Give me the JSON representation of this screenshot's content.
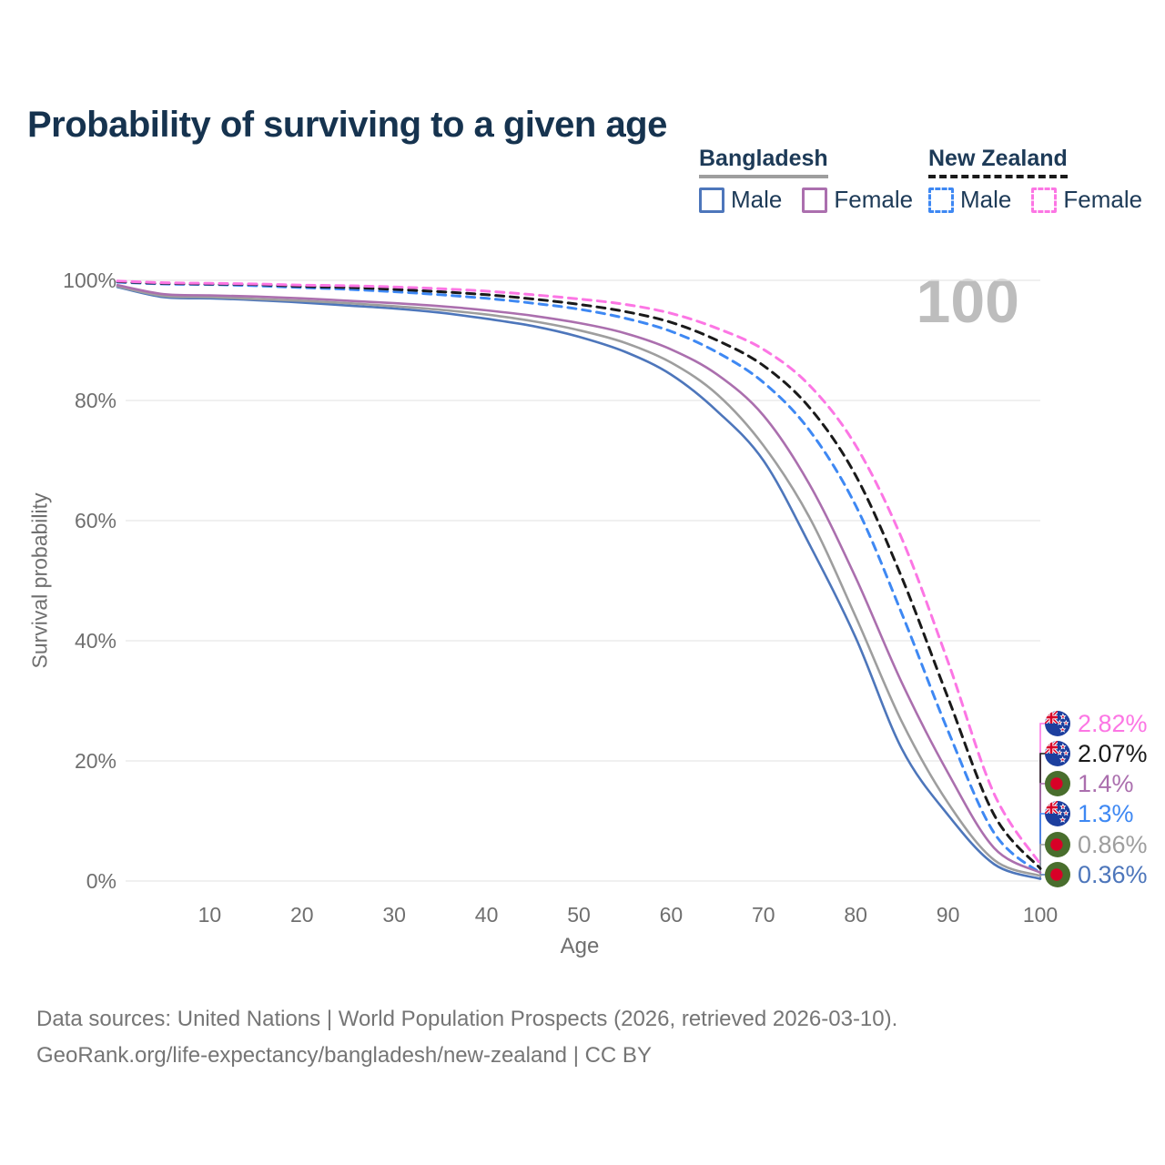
{
  "title": "Probability of surviving to a given age",
  "watermark": "100",
  "legend": {
    "groups": [
      {
        "name": "Bangladesh",
        "line_style": "solid",
        "line_color": "#9e9e9e",
        "items": [
          {
            "label": "Male",
            "color": "#4d76bb"
          },
          {
            "label": "Female",
            "color": "#ab6fae"
          }
        ]
      },
      {
        "name": "New Zealand",
        "line_style": "dashed",
        "line_color": "#1a1a1a",
        "items": [
          {
            "label": "Male",
            "color": "#3e88f3"
          },
          {
            "label": "Female",
            "color": "#fc76e4"
          }
        ]
      }
    ]
  },
  "chart_data": {
    "type": "line",
    "title": "Probability of surviving to a given age",
    "xlabel": "Age",
    "ylabel": "Survival probability",
    "xlim": [
      0,
      100
    ],
    "ylim": [
      0,
      100
    ],
    "grid": "horizontal",
    "x_ticks": [
      10,
      20,
      30,
      40,
      50,
      60,
      70,
      80,
      90,
      100
    ],
    "y_tick_labels": [
      "0%",
      "20%",
      "40%",
      "60%",
      "80%",
      "100%"
    ],
    "x": [
      0,
      5,
      10,
      15,
      20,
      25,
      30,
      35,
      40,
      45,
      50,
      55,
      60,
      65,
      70,
      75,
      80,
      85,
      90,
      95,
      100
    ],
    "series": [
      {
        "name": "New Zealand — Female",
        "country": "New Zealand",
        "sex": "Female",
        "color": "#fc76e4",
        "dash": true,
        "flag": "nz",
        "end_label": "2.82%",
        "values": [
          99.9,
          99.6,
          99.5,
          99.4,
          99.2,
          99.1,
          98.9,
          98.6,
          98.2,
          97.6,
          96.9,
          96.0,
          94.5,
          92.0,
          88.5,
          82.5,
          72.5,
          57.0,
          36.5,
          14.5,
          2.82
        ]
      },
      {
        "name": "New Zealand — Both sexes",
        "country": "New Zealand",
        "sex": "Both",
        "color": "#1a1a1a",
        "dash": true,
        "flag": "nz",
        "end_label": "2.07%",
        "values": [
          99.8,
          99.5,
          99.4,
          99.3,
          99.0,
          98.8,
          98.5,
          98.1,
          97.6,
          96.9,
          96.0,
          94.8,
          93.0,
          90.0,
          85.8,
          78.8,
          67.5,
          50.5,
          30.5,
          11.0,
          2.07
        ]
      },
      {
        "name": "Bangladesh — Female",
        "country": "Bangladesh",
        "sex": "Female",
        "color": "#ab6fae",
        "dash": false,
        "flag": "bd",
        "end_label": "1.4%",
        "values": [
          99.2,
          97.7,
          97.5,
          97.3,
          97.0,
          96.6,
          96.2,
          95.7,
          95.0,
          94.1,
          92.9,
          91.2,
          88.5,
          84.3,
          77.5,
          66.0,
          50.5,
          33.0,
          18.0,
          5.5,
          1.4
        ]
      },
      {
        "name": "New Zealand — Male",
        "country": "New Zealand",
        "sex": "Male",
        "color": "#3e88f3",
        "dash": true,
        "flag": "nz",
        "end_label": "1.3%",
        "values": [
          99.7,
          99.4,
          99.3,
          99.1,
          98.8,
          98.5,
          98.1,
          97.6,
          97.0,
          96.2,
          95.2,
          93.7,
          91.5,
          88.0,
          83.0,
          75.0,
          62.5,
          44.5,
          25.0,
          8.0,
          1.3
        ]
      },
      {
        "name": "Bangladesh — Both sexes",
        "country": "Bangladesh",
        "sex": "Both",
        "color": "#9e9e9e",
        "dash": false,
        "flag": "bd",
        "end_label": "0.86%",
        "values": [
          99.0,
          97.4,
          97.2,
          96.9,
          96.6,
          96.2,
          95.7,
          95.1,
          94.3,
          93.2,
          91.7,
          89.6,
          86.3,
          81.0,
          72.5,
          60.5,
          44.0,
          26.5,
          13.0,
          3.5,
          0.86
        ]
      },
      {
        "name": "Bangladesh — Male",
        "country": "Bangladesh",
        "sex": "Male",
        "color": "#4d76bb",
        "dash": false,
        "flag": "bd",
        "end_label": "0.36%",
        "values": [
          98.9,
          97.2,
          97.0,
          96.7,
          96.3,
          95.8,
          95.3,
          94.6,
          93.6,
          92.4,
          90.6,
          88.1,
          84.3,
          78.2,
          70.0,
          56.0,
          40.5,
          22.0,
          11.0,
          2.8,
          0.36
        ]
      }
    ]
  },
  "footer": {
    "line1": "Data sources: United Nations | World Population Prospects (2026, retrieved 2026-03-10).",
    "line2": "GeoRank.org/life-expectancy/bangladesh/new-zealand | CC BY"
  },
  "colors": {
    "title": "#16334f",
    "axis_text": "#6f6f6f",
    "gridline": "#e8e8e8",
    "watermark": "#bdbdbd",
    "footer_text": "#757575"
  }
}
